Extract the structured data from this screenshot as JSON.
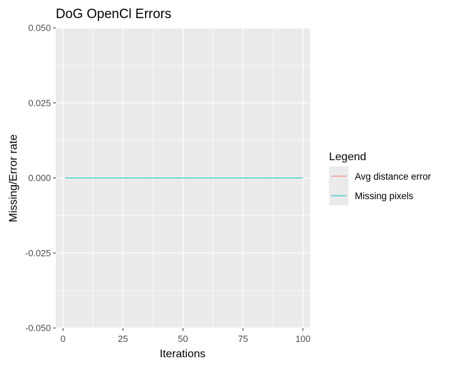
{
  "chart_data": {
    "type": "line",
    "title": "DoG OpenCl Errors",
    "xlabel": "Iterations",
    "ylabel": "Missing/Error rate",
    "xlim": [
      -3,
      103
    ],
    "ylim": [
      -0.05,
      0.05
    ],
    "x_ticks": [
      0,
      25,
      50,
      75,
      100
    ],
    "x_tick_labels": [
      "0",
      "25",
      "50",
      "75",
      "100"
    ],
    "y_ticks": [
      -0.05,
      -0.025,
      0,
      0.025,
      0.05
    ],
    "y_tick_labels": [
      "-0.050",
      "-0.025",
      "0.000",
      "0.025",
      "0.050"
    ],
    "grid": true,
    "legend": {
      "title": "Legend",
      "placement": "right"
    },
    "series": [
      {
        "name": "Avg distance error",
        "color": "#F8766D",
        "x": [
          1,
          100
        ],
        "y": [
          0,
          0
        ]
      },
      {
        "name": "Missing pixels",
        "color": "#00BFC4",
        "x": [
          1,
          100
        ],
        "y": [
          0,
          0
        ]
      }
    ],
    "colors": {
      "panel_background": "#EBEBEB",
      "grid": "#FFFFFF",
      "legend_key_background": "#EBEBEB"
    }
  }
}
